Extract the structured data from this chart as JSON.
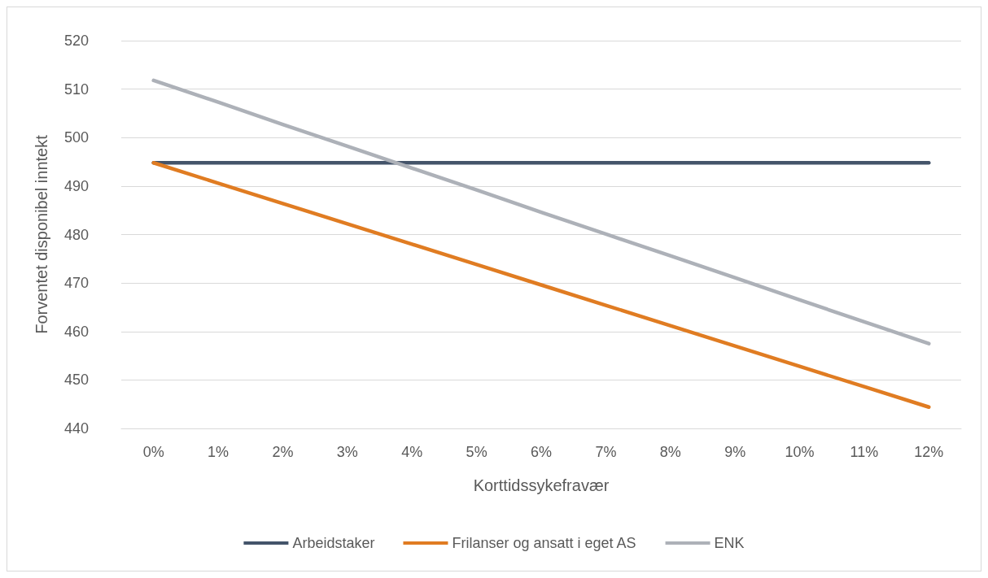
{
  "chart_data": {
    "type": "line",
    "xlabel": "Korttidssykefravær",
    "ylabel": "Forventet disponibel inntekt",
    "categories": [
      "0%",
      "1%",
      "2%",
      "3%",
      "4%",
      "5%",
      "6%",
      "7%",
      "8%",
      "9%",
      "10%",
      "11%",
      "12%"
    ],
    "series": [
      {
        "name": "Arbeidstaker",
        "color": "#44546a",
        "values": [
          494.8,
          494.8,
          494.8,
          494.8,
          494.8,
          494.8,
          494.8,
          494.8,
          494.8,
          494.8,
          494.8,
          494.8,
          494.8
        ]
      },
      {
        "name": "Frilanser og ansatt i eget AS",
        "color": "#e07c22",
        "values": [
          494.8,
          490.6,
          486.4,
          482.2,
          478.0,
          473.8,
          469.6,
          465.4,
          461.2,
          457.0,
          452.8,
          448.6,
          444.4
        ]
      },
      {
        "name": "ENK",
        "color": "#adb1b8",
        "values": [
          511.8,
          507.3,
          502.7,
          498.2,
          493.7,
          489.2,
          484.6,
          480.1,
          475.6,
          471.1,
          466.5,
          462.0,
          457.5
        ]
      }
    ],
    "ylim": [
      440,
      520
    ],
    "yticks": [
      440,
      450,
      460,
      470,
      480,
      490,
      500,
      510,
      520
    ],
    "grid": "y",
    "legend": "bottom",
    "marker": "none",
    "line_style": "solid"
  }
}
